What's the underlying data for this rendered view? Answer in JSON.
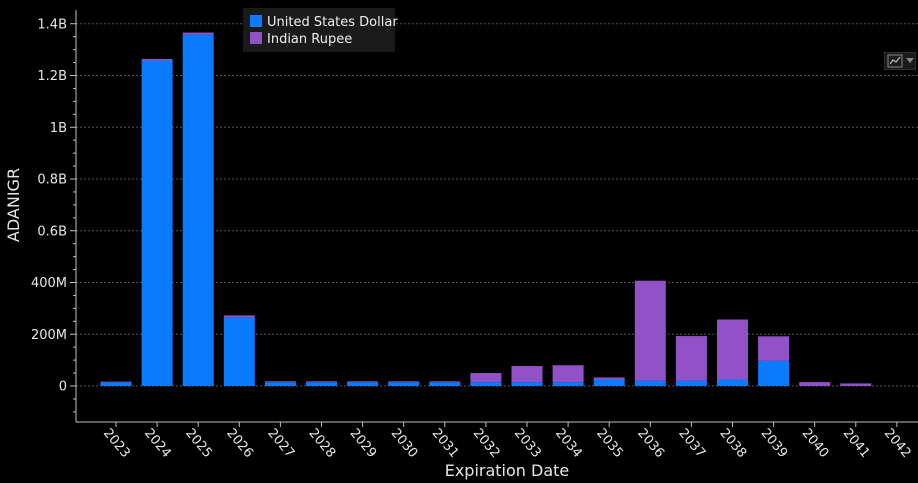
{
  "icons": {
    "chart_type_button": "line-chart-icon"
  },
  "chart_data": {
    "type": "bar",
    "stacked": true,
    "title": "",
    "xlabel": "Expiration Date",
    "ylabel": "ADANIGR",
    "ylim": [
      -100000000,
      1400000000
    ],
    "yticks": [
      0,
      200000000,
      400000000,
      600000000,
      800000000,
      1000000000,
      1200000000,
      1400000000
    ],
    "ytick_labels": [
      "0",
      "200M",
      "400M",
      "0.6B",
      "0.8B",
      "1B",
      "1.2B",
      "1.4B"
    ],
    "grid": true,
    "legend_position": "top-left",
    "categories": [
      "2023",
      "2024",
      "2025",
      "2026",
      "2027",
      "2028",
      "2029",
      "2030",
      "2031",
      "2032",
      "2033",
      "2034",
      "2035",
      "2036",
      "2037",
      "2038",
      "2039",
      "2040",
      "2041",
      "2042"
    ],
    "series": [
      {
        "name": "United States Dollar",
        "color": "#0a7bff",
        "values": [
          15000000,
          1258000000,
          1358000000,
          265000000,
          15000000,
          15000000,
          15000000,
          15000000,
          15000000,
          15000000,
          15000000,
          15000000,
          25000000,
          20000000,
          20000000,
          25000000,
          97000000,
          0,
          0,
          0
        ]
      },
      {
        "name": "Indian Rupee",
        "color": "#9152c8",
        "values": [
          2000000,
          6000000,
          8000000,
          8000000,
          3000000,
          3000000,
          3000000,
          3000000,
          3000000,
          35000000,
          62000000,
          65000000,
          8000000,
          387000000,
          173000000,
          232000000,
          95000000,
          15000000,
          10000000,
          0
        ]
      }
    ]
  }
}
